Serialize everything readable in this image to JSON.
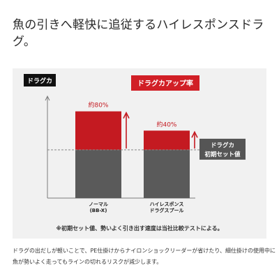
{
  "headline": {
    "line1": "魚の引きへ軽快に追従するハイレスポンスドラ",
    "line2": "グ。"
  },
  "chart_data": {
    "type": "bar",
    "ylabel": "ドラグカ",
    "categories": [
      {
        "line1": "ノーマル",
        "line2": "(BB-X)"
      },
      {
        "line1": "ハイレスポンス",
        "line2": "ドラグスプール"
      }
    ],
    "baseline_label": {
      "line1": "ドラグカ",
      "line2": "初期セット値"
    },
    "increase_label": "ドラグカアップ率",
    "series": [
      {
        "name": "初期セット値",
        "values": [
          1,
          1
        ]
      },
      {
        "name": "アップ率",
        "values": [
          0.8,
          0.4
        ]
      }
    ],
    "data_labels": [
      "約80%",
      "約40%"
    ],
    "ylim": [
      0,
      2.2
    ],
    "colors": {
      "base": "#5a5a5a",
      "increase": "#c41a21",
      "label_box": "#d11f26",
      "ylabel_box": "#111111",
      "baseline_box": "#555555",
      "arrow": "#c41a21",
      "axis": "#7a7a7a",
      "dashed": "#888888"
    }
  },
  "note": "※初期セット値、勢いよく引き出す速度は当社比較テストによる。",
  "body": {
    "line1": "ドラグの出だしが軽いことで、PE仕掛けからナイロンショックリーダーが省けたり、細仕掛けの使用中に",
    "line2": "魚が勢いよく走ってもラインの切れるリスクが減少します。"
  }
}
